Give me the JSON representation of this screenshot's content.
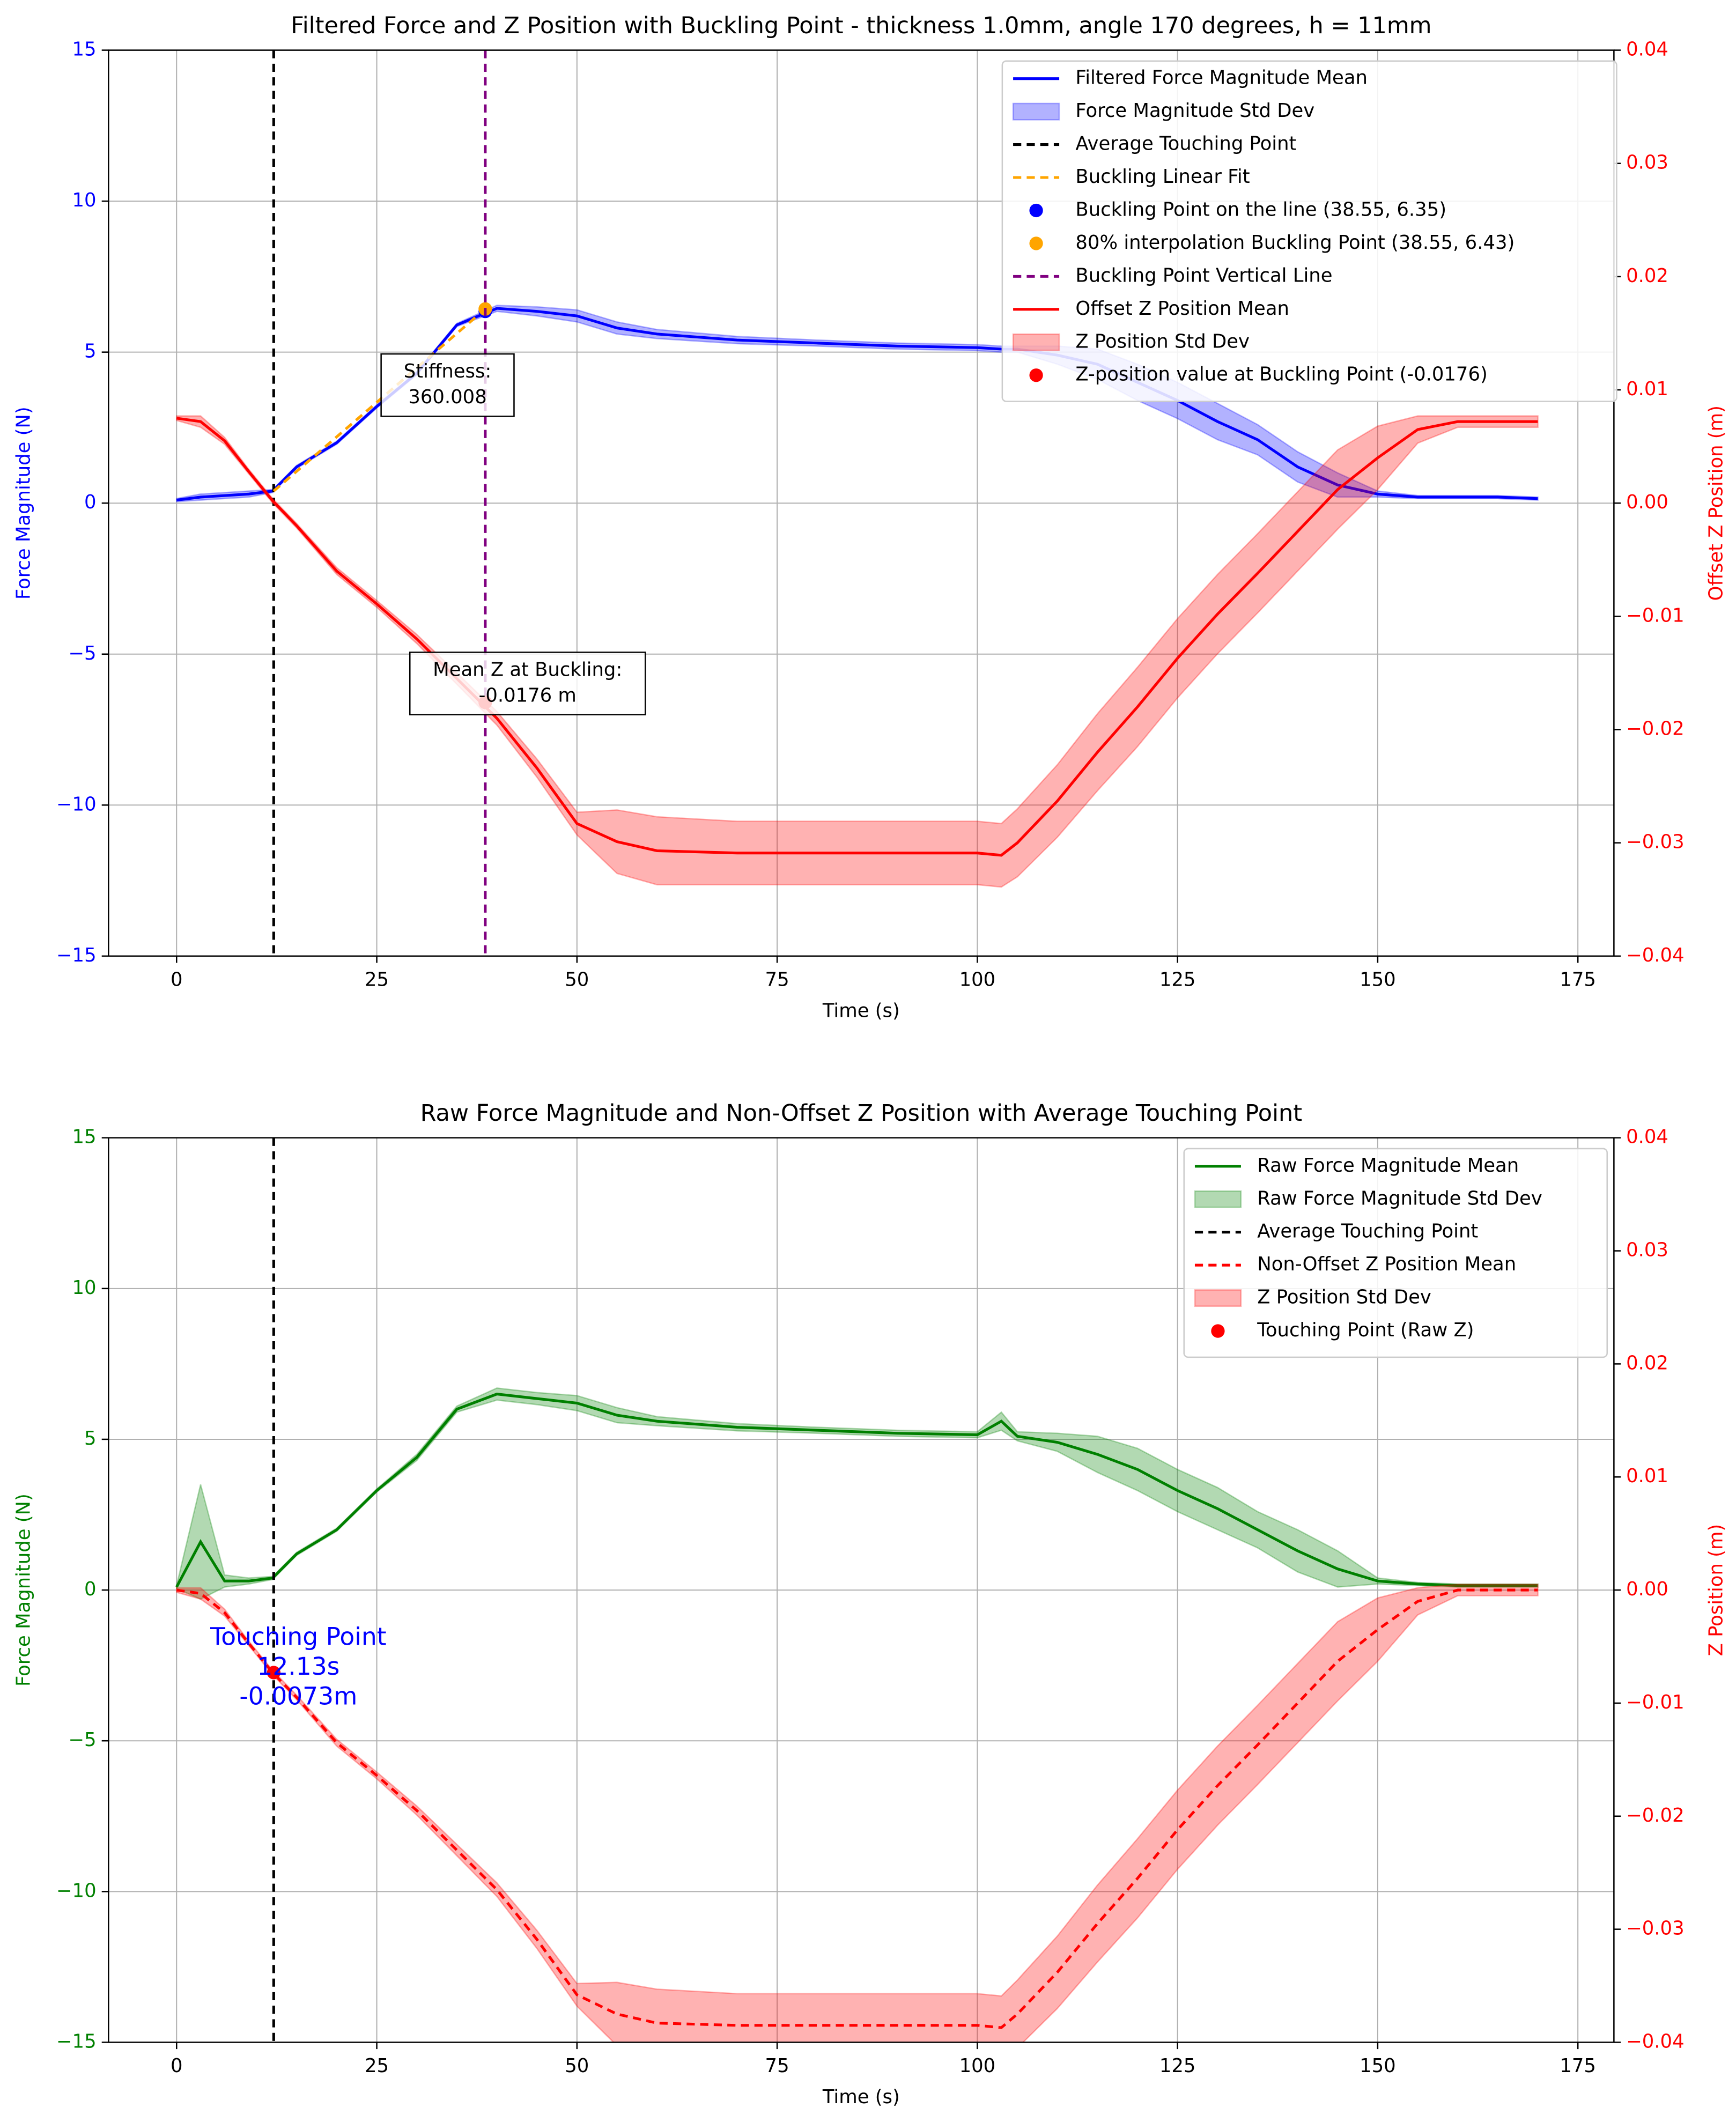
{
  "chart_data": [
    {
      "type": "line",
      "title": "Filtered Force and Z Position with Buckling Point - thickness 1.0mm, angle 170 degrees, h = 11mm",
      "xlabel": "Time (s)",
      "ylabel": "Force Magnitude (N)",
      "ylabel_color": "blue",
      "y2label": "Offset Z Position (m)",
      "y2label_color": "red",
      "xlim": [
        -8.5,
        179.5
      ],
      "xticks": [
        0,
        25,
        50,
        75,
        100,
        125,
        150,
        175
      ],
      "ylim": [
        -15,
        15
      ],
      "yticks": [
        {
          "value": -15,
          "label": "−15"
        },
        {
          "value": -10,
          "label": "−10"
        },
        {
          "value": -5,
          "label": "−5"
        },
        0,
        5,
        10,
        15
      ],
      "y2lim": [
        -0.04,
        0.04
      ],
      "y2ticks": [
        {
          "value": -0.04,
          "label": "−0.04"
        },
        {
          "value": -0.03,
          "label": "−0.03"
        },
        {
          "value": -0.02,
          "label": "−0.02"
        },
        {
          "value": -0.01,
          "label": "−0.01"
        },
        {
          "value": 0,
          "label": "0.00"
        },
        0.01,
        0.02,
        0.03,
        0.04
      ],
      "grid": true,
      "legend": "upper right",
      "x": [
        0,
        3,
        6,
        9,
        12,
        15,
        20,
        25,
        30,
        35,
        40,
        45,
        50,
        55,
        60,
        70,
        80,
        90,
        100,
        103,
        105,
        110,
        115,
        120,
        125,
        130,
        135,
        140,
        145,
        150,
        155,
        160,
        165,
        170
      ],
      "series": [
        {
          "name": "Filtered Force Magnitude Mean",
          "kind": "line",
          "color": "blue",
          "values": [
            0.1,
            0.2,
            0.25,
            0.3,
            0.4,
            1.2,
            2.0,
            3.2,
            4.3,
            5.9,
            6.45,
            6.35,
            6.2,
            5.8,
            5.6,
            5.4,
            5.3,
            5.2,
            5.15,
            5.1,
            5.1,
            4.9,
            4.6,
            4.0,
            3.4,
            2.7,
            2.1,
            1.2,
            0.6,
            0.3,
            0.2,
            0.2,
            0.2,
            0.15
          ]
        },
        {
          "name": "Force Magnitude Std Dev",
          "kind": "band",
          "color": "blue",
          "values": [
            0.05,
            0.1,
            0.1,
            0.1,
            0.05,
            0.05,
            0.05,
            0.05,
            0.05,
            0.05,
            0.1,
            0.15,
            0.2,
            0.2,
            0.15,
            0.12,
            0.1,
            0.1,
            0.1,
            0.1,
            0.1,
            0.3,
            0.5,
            0.6,
            0.6,
            0.6,
            0.5,
            0.5,
            0.4,
            0.1,
            0.05,
            0.05,
            0.05,
            0.05
          ]
        },
        {
          "name": "Average Touching Point",
          "kind": "vline",
          "color": "black",
          "dashed": true,
          "x": 12.13
        },
        {
          "name": "Buckling Linear Fit",
          "kind": "line",
          "color": "orange",
          "dashed": true,
          "x": [
            12.13,
            38.55
          ],
          "values": [
            0.4,
            6.43
          ]
        },
        {
          "name": "Buckling Point on the line (38.55, 6.35)",
          "kind": "point",
          "color": "blue",
          "x": [
            38.55
          ],
          "values": [
            6.35
          ]
        },
        {
          "name": "80% interpolation Buckling Point (38.55, 6.43)",
          "kind": "point",
          "color": "orange",
          "x": [
            38.55
          ],
          "values": [
            6.43
          ]
        },
        {
          "name": "Buckling Point Vertical Line",
          "kind": "vline",
          "color": "purple",
          "dashed": true,
          "x": 38.55
        },
        {
          "name": "Offset Z Position Mean",
          "kind": "line",
          "color": "red",
          "axis": "y2",
          "values": [
            0.0075,
            0.0072,
            0.0055,
            0.0028,
            0.0002,
            -0.002,
            -0.006,
            -0.0089,
            -0.012,
            -0.0155,
            -0.019,
            -0.0234,
            -0.0283,
            -0.0299,
            -0.0307,
            -0.0309,
            -0.0309,
            -0.0309,
            -0.0309,
            -0.0311,
            -0.03,
            -0.0263,
            -0.022,
            -0.018,
            -0.0137,
            -0.0098,
            -0.0062,
            -0.0025,
            0.0012,
            0.004,
            0.0065,
            0.0072,
            0.0072,
            0.0072
          ]
        },
        {
          "name": "Z Position Std Dev",
          "kind": "band",
          "color": "red",
          "axis": "y2",
          "values": [
            0.0002,
            0.0005,
            0.0003,
            0.0002,
            0.0002,
            0.0002,
            0.0003,
            0.0003,
            0.0004,
            0.0005,
            0.0006,
            0.0008,
            0.001,
            0.0028,
            0.003,
            0.0028,
            0.0028,
            0.0028,
            0.0028,
            0.0028,
            0.003,
            0.0032,
            0.0034,
            0.0035,
            0.0035,
            0.0035,
            0.0035,
            0.0035,
            0.0035,
            0.0028,
            0.0012,
            0.0005,
            0.0005,
            0.0005
          ]
        },
        {
          "name": "Z-position value at Buckling Point (-0.0176)",
          "kind": "point",
          "color": "red",
          "axis": "y2",
          "x": [
            38.55
          ],
          "values": [
            -0.0176
          ]
        }
      ],
      "annotations": [
        {
          "lines": [
            "Stiffness:",
            "360.008"
          ],
          "color": "black",
          "box": true
        },
        {
          "lines": [
            "Mean Z at Buckling:",
            "-0.0176 m"
          ],
          "color": "black",
          "box": true
        }
      ]
    },
    {
      "type": "line",
      "title": "Raw Force Magnitude and Non-Offset Z Position with Average Touching Point",
      "xlabel": "Time (s)",
      "ylabel": "Force Magnitude (N)",
      "ylabel_color": "green",
      "y2label": "Z Position (m)",
      "y2label_color": "red",
      "xlim": [
        -8.5,
        179.5
      ],
      "xticks": [
        0,
        25,
        50,
        75,
        100,
        125,
        150,
        175
      ],
      "ylim": [
        -15,
        15
      ],
      "yticks": [
        {
          "value": -15,
          "label": "−15"
        },
        {
          "value": -10,
          "label": "−10"
        },
        {
          "value": -5,
          "label": "−5"
        },
        0,
        5,
        10,
        15
      ],
      "y2lim": [
        -0.04,
        0.04
      ],
      "y2ticks": [
        {
          "value": -0.04,
          "label": "−0.04"
        },
        {
          "value": -0.03,
          "label": "−0.03"
        },
        {
          "value": -0.02,
          "label": "−0.02"
        },
        {
          "value": -0.01,
          "label": "−0.01"
        },
        {
          "value": 0,
          "label": "0.00"
        },
        0.01,
        0.02,
        0.03,
        0.04
      ],
      "grid": true,
      "legend": "upper right",
      "x": [
        0,
        3,
        6,
        9,
        12,
        15,
        20,
        25,
        30,
        35,
        40,
        45,
        50,
        55,
        60,
        70,
        80,
        90,
        100,
        103,
        105,
        110,
        115,
        120,
        125,
        130,
        135,
        140,
        145,
        150,
        155,
        160,
        165,
        170
      ],
      "series": [
        {
          "name": "Raw Force Magnitude Mean",
          "kind": "line",
          "color": "green",
          "values": [
            0.1,
            1.6,
            0.3,
            0.3,
            0.4,
            1.2,
            2.0,
            3.3,
            4.4,
            6.0,
            6.5,
            6.35,
            6.2,
            5.8,
            5.6,
            5.4,
            5.3,
            5.2,
            5.15,
            5.6,
            5.1,
            4.9,
            4.5,
            4.0,
            3.3,
            2.7,
            2.0,
            1.3,
            0.7,
            0.3,
            0.2,
            0.15,
            0.15,
            0.15
          ]
        },
        {
          "name": "Raw Force Magnitude Std Dev",
          "kind": "band",
          "color": "green",
          "values": [
            0.05,
            1.9,
            0.2,
            0.1,
            0.05,
            0.05,
            0.05,
            0.05,
            0.1,
            0.1,
            0.2,
            0.2,
            0.25,
            0.25,
            0.15,
            0.12,
            0.1,
            0.1,
            0.1,
            0.3,
            0.15,
            0.3,
            0.6,
            0.7,
            0.7,
            0.7,
            0.6,
            0.7,
            0.6,
            0.1,
            0.05,
            0.05,
            0.05,
            0.05
          ]
        },
        {
          "name": "Average Touching Point",
          "kind": "vline",
          "color": "black",
          "dashed": true,
          "x": 12.13
        },
        {
          "name": "Non-Offset Z Position Mean",
          "kind": "line",
          "color": "red",
          "dashed": true,
          "axis": "y2",
          "values": [
            0,
            -0.0003,
            -0.002,
            -0.0047,
            -0.0073,
            -0.0095,
            -0.0135,
            -0.0164,
            -0.0195,
            -0.023,
            -0.0265,
            -0.0309,
            -0.0358,
            -0.0375,
            -0.0383,
            -0.0385,
            -0.0385,
            -0.0385,
            -0.0385,
            -0.0387,
            -0.0375,
            -0.0338,
            -0.0295,
            -0.0255,
            -0.0212,
            -0.0173,
            -0.0137,
            -0.01,
            -0.0063,
            -0.0035,
            -0.001,
            0,
            0,
            0
          ]
        },
        {
          "name": "Z Position Std Dev",
          "kind": "band",
          "color": "red",
          "axis": "y2",
          "values": [
            0.0002,
            0.0005,
            0.0003,
            0.0002,
            0.0002,
            0.0002,
            0.0003,
            0.0003,
            0.0004,
            0.0005,
            0.0006,
            0.0008,
            0.001,
            0.0028,
            0.003,
            0.0028,
            0.0028,
            0.0028,
            0.0028,
            0.0028,
            0.003,
            0.0032,
            0.0034,
            0.0035,
            0.0035,
            0.0035,
            0.0035,
            0.0035,
            0.0035,
            0.0028,
            0.0012,
            0.0005,
            0.0005,
            0.0005
          ]
        },
        {
          "name": "Touching Point (Raw Z)",
          "kind": "point",
          "color": "red",
          "axis": "y2",
          "x": [
            12.13
          ],
          "values": [
            -0.0073
          ]
        }
      ],
      "annotations": [
        {
          "lines": [
            "Touching Point",
            "12.13s",
            "-0.0073m"
          ],
          "color": "blue",
          "box": false
        }
      ]
    }
  ]
}
